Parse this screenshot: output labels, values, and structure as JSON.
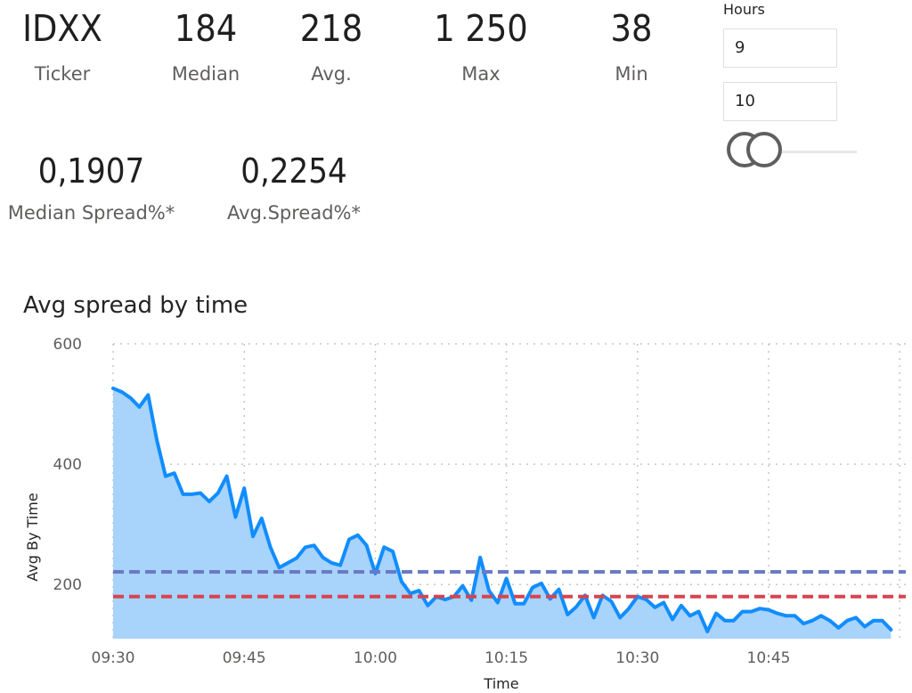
{
  "kpis": {
    "ticker": {
      "value": "IDXX",
      "label": "Ticker"
    },
    "median": {
      "value": "184",
      "label": "Median"
    },
    "avg": {
      "value": "218",
      "label": "Avg."
    },
    "max": {
      "value": "1 250",
      "label": "Max"
    },
    "min": {
      "value": "38",
      "label": "Min"
    },
    "median_spread": {
      "value": "0,1907",
      "label": "Median Spread%*"
    },
    "avg_spread": {
      "value": "0,2254",
      "label": "Avg.Spread%*"
    }
  },
  "slicer": {
    "title": "Hours",
    "from_value": "9",
    "to_value": "10"
  },
  "colors": {
    "line": "#118DFF",
    "area": "#A8D3FB",
    "avg_line": "#6B7AC4",
    "median_line": "#D64550",
    "grid": "#C8C6C4"
  },
  "chart_data": {
    "type": "area",
    "title": "Avg spread by time",
    "xlabel": "Time",
    "ylabel": "Avg By Time",
    "ylim": [
      110,
      600
    ],
    "yticks": [
      200,
      400,
      600
    ],
    "xlim": [
      "09:30",
      "10:59"
    ],
    "xticks": [
      "09:30",
      "09:45",
      "10:00",
      "10:15",
      "10:30",
      "10:45"
    ],
    "grid": true,
    "x": [
      "09:30",
      "09:31",
      "09:32",
      "09:33",
      "09:34",
      "09:35",
      "09:36",
      "09:37",
      "09:38",
      "09:39",
      "09:40",
      "09:41",
      "09:42",
      "09:43",
      "09:44",
      "09:45",
      "09:46",
      "09:47",
      "09:48",
      "09:49",
      "09:50",
      "09:51",
      "09:52",
      "09:53",
      "09:54",
      "09:55",
      "09:56",
      "09:57",
      "09:58",
      "09:59",
      "10:00",
      "10:01",
      "10:02",
      "10:03",
      "10:04",
      "10:05",
      "10:06",
      "10:07",
      "10:08",
      "10:09",
      "10:10",
      "10:11",
      "10:12",
      "10:13",
      "10:14",
      "10:15",
      "10:16",
      "10:17",
      "10:18",
      "10:19",
      "10:20",
      "10:21",
      "10:22",
      "10:23",
      "10:24",
      "10:25",
      "10:26",
      "10:27",
      "10:28",
      "10:29",
      "10:30",
      "10:31",
      "10:32",
      "10:33",
      "10:34",
      "10:35",
      "10:36",
      "10:37",
      "10:38",
      "10:39",
      "10:40",
      "10:41",
      "10:42",
      "10:43",
      "10:44",
      "10:45",
      "10:46",
      "10:47",
      "10:48",
      "10:49",
      "10:50",
      "10:51",
      "10:52",
      "10:53",
      "10:54",
      "10:55",
      "10:56",
      "10:57",
      "10:58",
      "10:59"
    ],
    "series": [
      {
        "values": [
          526,
          520,
          510,
          495,
          515,
          440,
          380,
          385,
          350,
          350,
          352,
          338,
          352,
          380,
          312,
          360,
          280,
          310,
          262,
          228,
          236,
          244,
          262,
          265,
          245,
          236,
          232,
          275,
          282,
          265,
          218,
          262,
          255,
          205,
          185,
          190,
          165,
          180,
          175,
          180,
          198,
          174,
          245,
          190,
          170,
          210,
          168,
          168,
          195,
          202,
          176,
          192,
          150,
          163,
          182,
          145,
          182,
          172,
          145,
          160,
          180,
          175,
          162,
          170,
          142,
          165,
          148,
          155,
          122,
          152,
          140,
          140,
          155,
          155,
          160,
          158,
          152,
          148,
          148,
          135,
          140,
          148,
          140,
          128,
          140,
          145,
          130,
          140,
          140,
          125
        ]
      }
    ],
    "reference_lines": [
      {
        "value": 221,
        "color": "#6B7AC4"
      },
      {
        "value": 180,
        "color": "#D64550"
      }
    ]
  }
}
